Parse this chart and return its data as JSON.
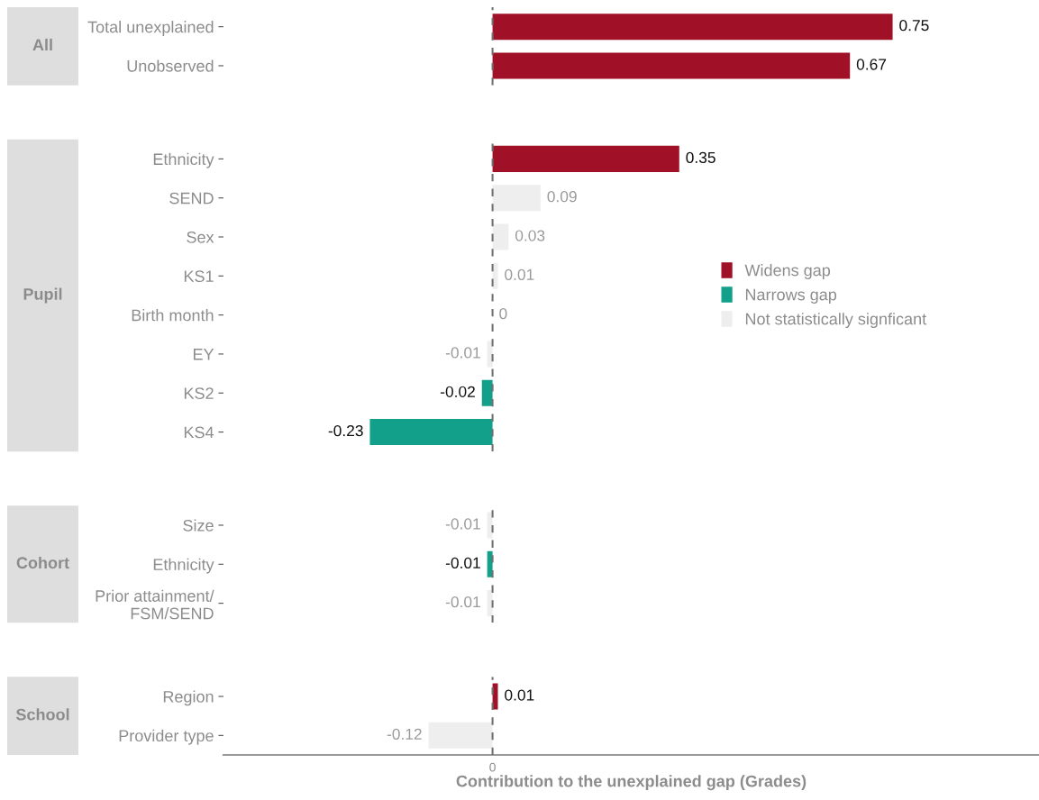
{
  "chart_data": [
    {
      "type": "bar",
      "orientation": "horizontal",
      "ylabel": "All",
      "categories": [
        "Total unexplained",
        "Unobserved"
      ],
      "tick_labels": "y",
      "data_labels": true,
      "ref_lines": [
        {
          "axis": "x",
          "value": 0,
          "line_style": "dashed",
          "color": "#707070"
        }
      ],
      "series": [
        {
          "color": "#a01127",
          "values": [
            0.75,
            0.67
          ]
        }
      ]
    },
    {
      "type": "bar",
      "orientation": "horizontal",
      "ylabel": "Pupil",
      "categories": [
        "Ethnicity",
        "SEND",
        "Sex",
        "KS1",
        "Birth month",
        "EY",
        "KS2",
        "KS4"
      ],
      "tick_labels": "y",
      "data_labels": true,
      "legend": "right",
      "ref_lines": [
        {
          "axis": "x",
          "value": 0,
          "line_style": "dashed",
          "color": "#707070"
        }
      ],
      "series": [
        {
          "name": "Widens gap",
          "color": "#a01127",
          "values": [
            0.35,
            null,
            null,
            null,
            null,
            null,
            null,
            null
          ]
        },
        {
          "name": "Narrows gap",
          "color": "#12a08a",
          "values": [
            null,
            null,
            null,
            null,
            null,
            null,
            -0.02,
            -0.23
          ]
        },
        {
          "name": "Not statistically signficant",
          "color": "#eeeeee",
          "values": [
            null,
            0.09,
            0.03,
            0.01,
            0,
            -0.01,
            null,
            null
          ]
        }
      ]
    },
    {
      "type": "bar",
      "orientation": "horizontal",
      "ylabel": "Cohort",
      "categories": [
        "Size",
        "Ethnicity",
        "Prior attainment/\nFSM/SEND"
      ],
      "tick_labels": "y",
      "data_labels": true,
      "ref_lines": [
        {
          "axis": "x",
          "value": 0,
          "line_style": "dashed",
          "color": "#707070"
        }
      ],
      "series": [
        {
          "color": "#12a08a",
          "values": [
            null,
            -0.01,
            null
          ]
        },
        {
          "color": "#eeeeee",
          "values": [
            -0.01,
            null,
            -0.01
          ]
        }
      ]
    },
    {
      "type": "bar",
      "orientation": "horizontal",
      "ylabel": "School",
      "categories": [
        "Region",
        "Provider type"
      ],
      "xlabel": "Contribution to the unexplained gap (Grades)",
      "data_labels": true,
      "annotations": [
        "0"
      ],
      "ref_lines": [
        {
          "axis": "x",
          "value": 0,
          "line_style": "dashed",
          "color": "#707070"
        }
      ],
      "series": [
        {
          "color": "#a01127",
          "values": [
            0.01,
            null
          ]
        },
        {
          "color": "#eeeeee",
          "values": [
            null,
            -0.12
          ]
        }
      ]
    }
  ]
}
